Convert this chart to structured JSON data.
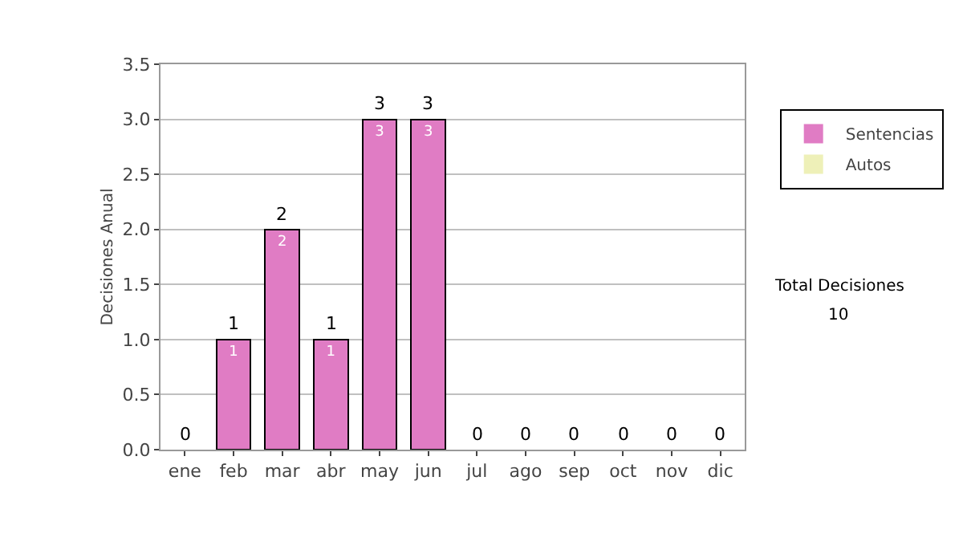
{
  "chart_data": {
    "type": "bar",
    "stacked": true,
    "ylabel": "Decisiones Anual",
    "categories": [
      "ene",
      "feb",
      "mar",
      "abr",
      "may",
      "jun",
      "jul",
      "ago",
      "sep",
      "oct",
      "nov",
      "dic"
    ],
    "series": [
      {
        "name": "Sentencias",
        "color": "#e07cc4",
        "values": [
          0,
          1,
          2,
          1,
          3,
          3,
          0,
          0,
          0,
          0,
          0,
          0
        ],
        "value_labels": [
          null,
          "1",
          "2",
          "1",
          "3",
          "3",
          null,
          null,
          null,
          null,
          null,
          null
        ]
      },
      {
        "name": "Autos",
        "color": "#eef0b8",
        "values": [
          0,
          0,
          0,
          0,
          0,
          0,
          0,
          0,
          0,
          0,
          0,
          0
        ]
      }
    ],
    "totals": [
      "0",
      "1",
      "2",
      "1",
      "3",
      "3",
      "0",
      "0",
      "0",
      "0",
      "0",
      "0"
    ],
    "ylim": [
      0,
      3.5
    ],
    "yticks": [
      {
        "value": 0,
        "label": "0.0"
      },
      {
        "value": 0.5,
        "label": "0.5"
      },
      {
        "value": 1,
        "label": "1.0"
      },
      {
        "value": 1.5,
        "label": "1.5"
      },
      {
        "value": 2,
        "label": "2.0"
      },
      {
        "value": 2.5,
        "label": "2.5"
      },
      {
        "value": 3,
        "label": "3.0"
      },
      {
        "value": 3.5,
        "label": "3.5"
      }
    ],
    "grid": "y",
    "legend": "right",
    "annotations": [
      "Total Decisiones",
      "10"
    ]
  }
}
